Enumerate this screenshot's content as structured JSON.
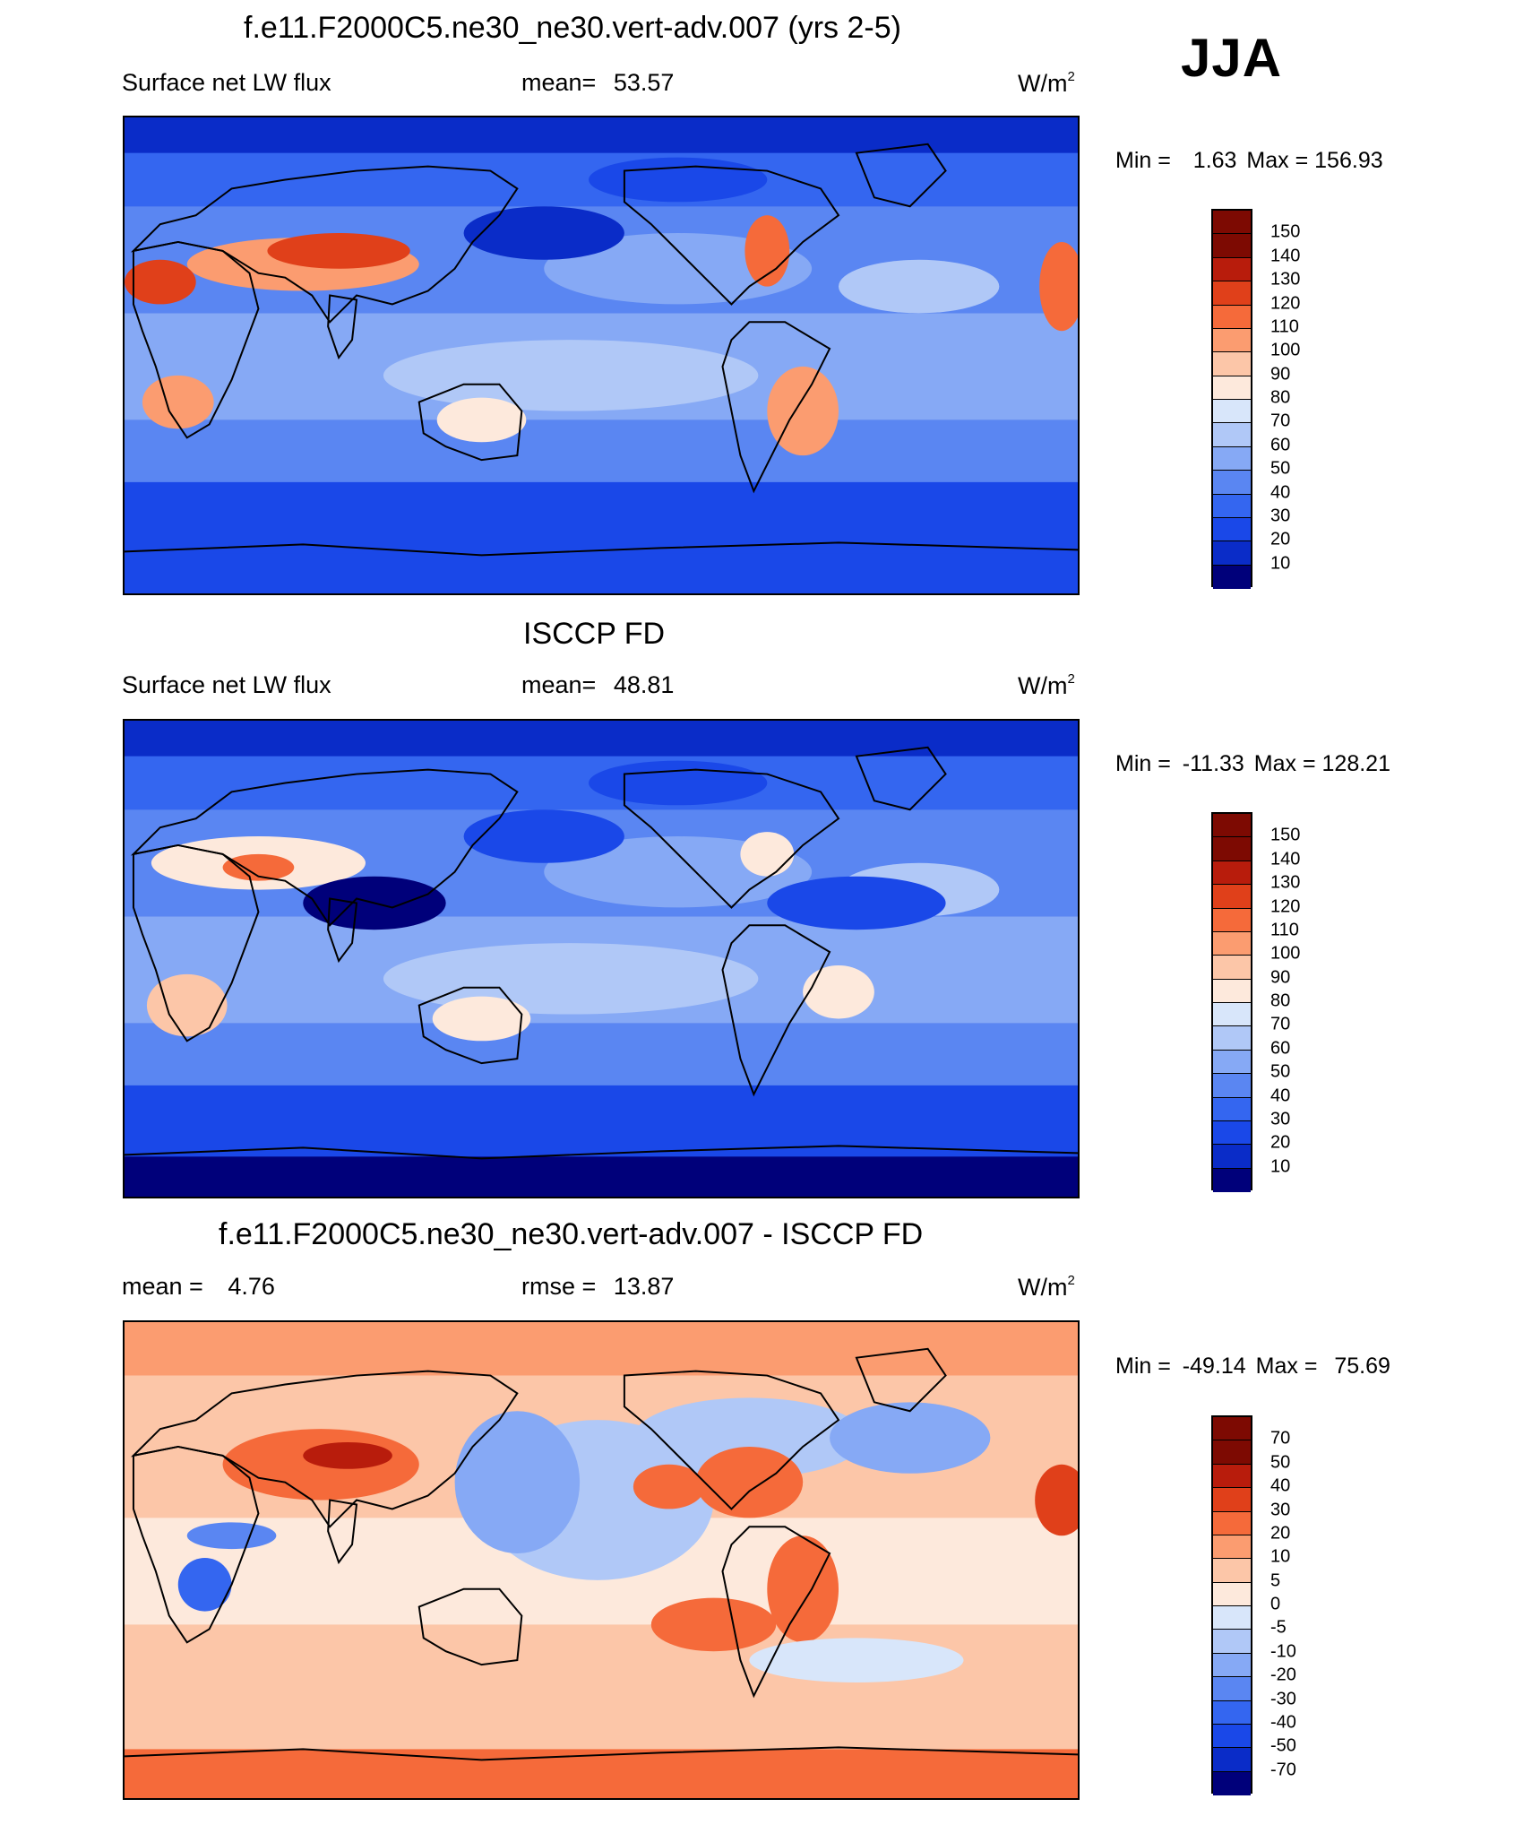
{
  "season": "JJA",
  "colors": {
    "lw_palette": [
      "#00007a",
      "#0a2cc8",
      "#1a48e8",
      "#3466f0",
      "#5a86f2",
      "#86a9f5",
      "#b0c8f7",
      "#d8e6fa",
      "#fde9dc",
      "#fcc6a8",
      "#fb9c70",
      "#f56a3a",
      "#e0401a",
      "#b81c0c",
      "#7d0a02"
    ],
    "diff_palette": [
      "#00007a",
      "#0a2cc8",
      "#1a48e8",
      "#3466f0",
      "#5a86f2",
      "#86a9f5",
      "#b0c8f7",
      "#d8e6fa",
      "#fde9dc",
      "#fcc6a8",
      "#fb9c70",
      "#f56a3a",
      "#e0401a",
      "#b81c0c",
      "#7d0a02"
    ],
    "coastline": "#000000"
  },
  "panels": [
    {
      "title": "f.e11.F2000C5.ne30_ne30.vert-adv.007 (yrs 2-5)",
      "left": "Surface net LW flux",
      "center_label": "mean=",
      "center_value": "53.57",
      "units": "W/m",
      "units_sup": "2",
      "min_label": "Min =",
      "min_value": "1.63",
      "max_label": "Max =",
      "max_value": "156.93",
      "colorbar_labels": [
        "150",
        "140",
        "130",
        "120",
        "110",
        "100",
        "90",
        "80",
        "70",
        "60",
        "50",
        "40",
        "30",
        "20",
        "10"
      ]
    },
    {
      "title": "ISCCP FD",
      "left": "Surface net LW flux",
      "center_label": "mean=",
      "center_value": "48.81",
      "units": "W/m",
      "units_sup": "2",
      "min_label": "Min =",
      "min_value": "-11.33",
      "max_label": "Max =",
      "max_value": "128.21",
      "colorbar_labels": [
        "150",
        "140",
        "130",
        "120",
        "110",
        "100",
        "90",
        "80",
        "70",
        "60",
        "50",
        "40",
        "30",
        "20",
        "10"
      ]
    },
    {
      "title": "f.e11.F2000C5.ne30_ne30.vert-adv.007 - ISCCP FD",
      "left_label": "mean =",
      "left_value": "4.76",
      "center_label": "rmse =",
      "center_value": "13.87",
      "units": "W/m",
      "units_sup": "2",
      "min_label": "Min =",
      "min_value": "-49.14",
      "max_label": "Max =",
      "max_value": "75.69",
      "colorbar_labels": [
        "70",
        "50",
        "40",
        "30",
        "20",
        "10",
        "5",
        "0",
        "-5",
        "-10",
        "-20",
        "-30",
        "-40",
        "-50",
        "-70"
      ]
    }
  ],
  "chart_data": [
    {
      "type": "heatmap",
      "title": "f.e11.F2000C5.ne30_ne30.vert-adv.007 (yrs 2-5)",
      "variable": "Surface net LW flux",
      "units": "W/m2",
      "mean": 53.57,
      "min": 1.63,
      "max": 156.93,
      "levels": [
        10,
        20,
        30,
        40,
        50,
        60,
        70,
        80,
        90,
        100,
        110,
        120,
        130,
        140,
        150
      ]
    },
    {
      "type": "heatmap",
      "title": "ISCCP FD",
      "variable": "Surface net LW flux",
      "units": "W/m2",
      "mean": 48.81,
      "min": -11.33,
      "max": 128.21,
      "levels": [
        10,
        20,
        30,
        40,
        50,
        60,
        70,
        80,
        90,
        100,
        110,
        120,
        130,
        140,
        150
      ]
    },
    {
      "type": "heatmap",
      "title": "f.e11.F2000C5.ne30_ne30.vert-adv.007 - ISCCP FD",
      "units": "W/m2",
      "mean": 4.76,
      "rmse": 13.87,
      "min": -49.14,
      "max": 75.69,
      "levels": [
        -70,
        -50,
        -40,
        -30,
        -20,
        -10,
        -5,
        0,
        5,
        10,
        20,
        30,
        40,
        50,
        70
      ]
    }
  ]
}
